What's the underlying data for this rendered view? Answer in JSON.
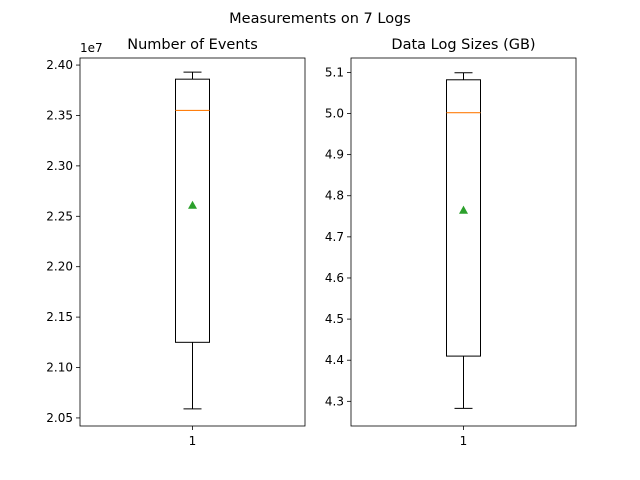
{
  "figure": {
    "suptitle": "Measurements on 7 Logs"
  },
  "chart_data": [
    {
      "type": "boxplot",
      "title": "Number of Events",
      "categories": [
        "1"
      ],
      "offset_text": "1e7",
      "yticks": [
        "2.05",
        "2.10",
        "2.15",
        "2.20",
        "2.25",
        "2.30",
        "2.35",
        "2.40"
      ],
      "ylim": [
        20420000,
        24070000
      ],
      "box": {
        "whisker_low": 20590000,
        "q1": 21250000,
        "median": 23550000,
        "q3": 23860000,
        "whisker_high": 23930000,
        "mean": 22610000
      },
      "colors": {
        "box": "#000000",
        "median": "#ff7f0e",
        "mean": "#2ca02c"
      }
    },
    {
      "type": "boxplot",
      "title": "Data Log Sizes (GB)",
      "categories": [
        "1"
      ],
      "yticks": [
        "4.3",
        "4.4",
        "4.5",
        "4.6",
        "4.7",
        "4.8",
        "4.9",
        "5.0",
        "5.1"
      ],
      "ylim": [
        4.24,
        5.135
      ],
      "box": {
        "whisker_low": 4.283,
        "q1": 4.41,
        "median": 5.002,
        "q3": 5.082,
        "whisker_high": 5.099,
        "mean": 4.765
      },
      "colors": {
        "box": "#000000",
        "median": "#ff7f0e",
        "mean": "#2ca02c"
      }
    }
  ]
}
